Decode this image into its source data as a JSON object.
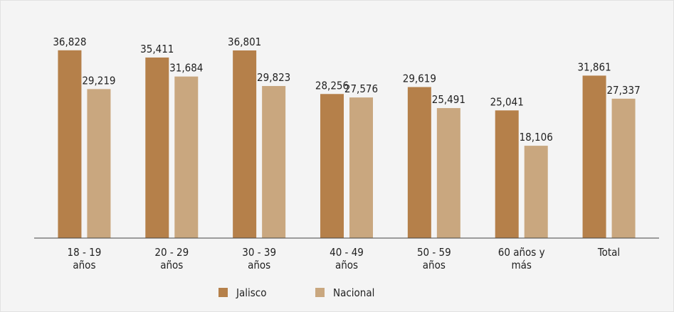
{
  "chart_data": {
    "type": "bar",
    "categories": [
      "18 - 19 años",
      "20 - 29 años",
      "30 - 39 años",
      "40 - 49 años",
      "50 - 59 años",
      "60 años y más",
      "Total"
    ],
    "series": [
      {
        "name": "Jalisco",
        "color": "#b5804a",
        "values": [
          36828,
          35411,
          36801,
          28256,
          29619,
          25041,
          31861
        ],
        "value_labels": [
          "36,828",
          "35,411",
          "36,801",
          "28,256",
          "29,619",
          "25,041",
          "31,861"
        ]
      },
      {
        "name": "Nacional",
        "color": "#c9a77f",
        "values": [
          29219,
          31684,
          29823,
          27576,
          25491,
          18106,
          27337
        ],
        "value_labels": [
          "29,219",
          "31,684",
          "29,823",
          "27,576",
          "25,491",
          "18,106",
          "27,337"
        ]
      }
    ],
    "ylim": [
      0,
      40000
    ],
    "legend": "bottom"
  }
}
